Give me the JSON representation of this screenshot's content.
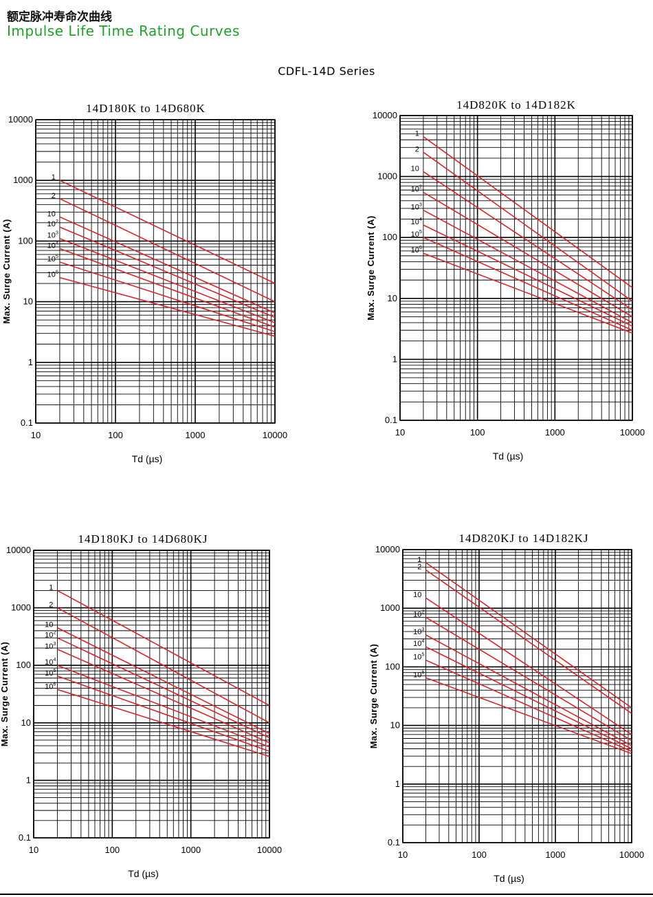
{
  "header": {
    "title_cn": "额定脉冲寿命次曲线",
    "title_en": "Impulse Life Time Rating Curves",
    "series": "CDFL-14D Series"
  },
  "colors": {
    "curve": "#d8232a",
    "grid": "#000000"
  },
  "chart_data": [
    {
      "type": "line",
      "title": "14D180K to 14D680K",
      "xlabel": "Td (µs)",
      "ylabel": "Max. Surge Current (A)",
      "x_scale": "log",
      "y_scale": "log",
      "xlim": [
        10,
        10000
      ],
      "ylim": [
        0.1,
        10000
      ],
      "x_ticks": [
        "10",
        "100",
        "1000",
        "10000"
      ],
      "y_ticks": [
        "0.1",
        "1",
        "10",
        "100",
        "1000",
        "10000"
      ],
      "grid": true,
      "series": [
        {
          "name": "1",
          "base": "1",
          "exp": "",
          "x": [
            20,
            10000
          ],
          "y": [
            1000,
            20
          ]
        },
        {
          "name": "2",
          "base": "2",
          "exp": "",
          "x": [
            20,
            10000
          ],
          "y": [
            500,
            10
          ]
        },
        {
          "name": "10",
          "base": "10",
          "exp": "",
          "x": [
            20,
            10000
          ],
          "y": [
            250,
            6.5
          ]
        },
        {
          "name": "10²",
          "base": "10",
          "exp": "2",
          "x": [
            20,
            10000
          ],
          "y": [
            170,
            5.5
          ]
        },
        {
          "name": "10³",
          "base": "10",
          "exp": "3",
          "x": [
            20,
            10000
          ],
          "y": [
            110,
            4.5
          ]
        },
        {
          "name": "10⁴",
          "base": "10",
          "exp": "4",
          "x": [
            20,
            10000
          ],
          "y": [
            75,
            3.8
          ]
        },
        {
          "name": "10⁵",
          "base": "10",
          "exp": "5",
          "x": [
            20,
            10000
          ],
          "y": [
            45,
            3.2
          ]
        },
        {
          "name": "10⁶",
          "base": "10",
          "exp": "6",
          "x": [
            20,
            10000
          ],
          "y": [
            25,
            2.7
          ]
        }
      ]
    },
    {
      "type": "line",
      "title": "14D820K to 14D182K",
      "xlabel": "Td (µs)",
      "ylabel": "Max. Surge Current (A)",
      "x_scale": "log",
      "y_scale": "log",
      "xlim": [
        10,
        10000
      ],
      "ylim": [
        0.1,
        10000
      ],
      "x_ticks": [
        "10",
        "100",
        "1000",
        "10000"
      ],
      "y_ticks": [
        "0.1",
        "1",
        "10",
        "100",
        "1000",
        "10000"
      ],
      "grid": true,
      "series": [
        {
          "name": "1",
          "base": "1",
          "exp": "",
          "x": [
            20,
            10000
          ],
          "y": [
            4500,
            15
          ]
        },
        {
          "name": "2",
          "base": "2",
          "exp": "",
          "x": [
            20,
            10000
          ],
          "y": [
            2500,
            9
          ]
        },
        {
          "name": "10",
          "base": "10",
          "exp": "",
          "x": [
            20,
            10000
          ],
          "y": [
            1200,
            6.5
          ]
        },
        {
          "name": "10²",
          "base": "10",
          "exp": "2",
          "x": [
            20,
            10000
          ],
          "y": [
            550,
            5
          ]
        },
        {
          "name": "10³",
          "base": "10",
          "exp": "3",
          "x": [
            20,
            10000
          ],
          "y": [
            280,
            4
          ]
        },
        {
          "name": "10⁴",
          "base": "10",
          "exp": "4",
          "x": [
            20,
            10000
          ],
          "y": [
            160,
            3.5
          ]
        },
        {
          "name": "10⁵",
          "base": "10",
          "exp": "5",
          "x": [
            20,
            10000
          ],
          "y": [
            100,
            3
          ]
        },
        {
          "name": "10⁶",
          "base": "10",
          "exp": "6",
          "x": [
            20,
            10000
          ],
          "y": [
            55,
            2.7
          ]
        }
      ]
    },
    {
      "type": "line",
      "title": "14D180KJ to 14D680KJ",
      "xlabel": "Td (µs)",
      "ylabel": "Max. Surge Current (A)",
      "x_scale": "log",
      "y_scale": "log",
      "xlim": [
        10,
        10000
      ],
      "ylim": [
        0.1,
        10000
      ],
      "x_ticks": [
        "10",
        "100",
        "1000",
        "10000"
      ],
      "y_ticks": [
        "0.1",
        "1",
        "10",
        "100",
        "1000",
        "10000"
      ],
      "grid": true,
      "series": [
        {
          "name": "1",
          "base": "1",
          "exp": "",
          "x": [
            20,
            10000
          ],
          "y": [
            2000,
            20
          ]
        },
        {
          "name": "2",
          "base": "2",
          "exp": "",
          "x": [
            20,
            10000
          ],
          "y": [
            1000,
            10
          ]
        },
        {
          "name": "10",
          "base": "10",
          "exp": "",
          "x": [
            20,
            10000
          ],
          "y": [
            450,
            6.5
          ]
        },
        {
          "name": "10²",
          "base": "10",
          "exp": "2",
          "x": [
            20,
            10000
          ],
          "y": [
            300,
            5.5
          ]
        },
        {
          "name": "10³",
          "base": "10",
          "exp": "3",
          "x": [
            20,
            10000
          ],
          "y": [
            190,
            4.5
          ]
        },
        {
          "name": "10⁴",
          "base": "10",
          "exp": "4",
          "x": [
            20,
            10000
          ],
          "y": [
            100,
            3.8
          ]
        },
        {
          "name": "10⁵",
          "base": "10",
          "exp": "5",
          "x": [
            20,
            10000
          ],
          "y": [
            65,
            3.2
          ]
        },
        {
          "name": "10⁶",
          "base": "10",
          "exp": "6",
          "x": [
            20,
            10000
          ],
          "y": [
            38,
            2.6
          ]
        }
      ]
    },
    {
      "type": "line",
      "title": "14D820KJ to 14D182KJ",
      "xlabel": "Td (µs)",
      "ylabel": "Max. Surge Current (A)",
      "x_scale": "log",
      "y_scale": "log",
      "xlim": [
        10,
        10000
      ],
      "ylim": [
        0.1,
        10000
      ],
      "x_ticks": [
        "10",
        "100",
        "1000",
        "10000"
      ],
      "y_ticks": [
        "0.1",
        "1",
        "10",
        "100",
        "1000",
        "10000"
      ],
      "grid": true,
      "series": [
        {
          "name": "1",
          "base": "1",
          "exp": "",
          "x": [
            20,
            10000
          ],
          "y": [
            6000,
            20
          ]
        },
        {
          "name": "2",
          "base": "2",
          "exp": "",
          "x": [
            20,
            10000
          ],
          "y": [
            4500,
            16
          ]
        },
        {
          "name": "10",
          "base": "10",
          "exp": "",
          "x": [
            20,
            10000
          ],
          "y": [
            1500,
            7
          ]
        },
        {
          "name": "10²",
          "base": "10",
          "exp": "2",
          "x": [
            20,
            10000
          ],
          "y": [
            700,
            5.5
          ]
        },
        {
          "name": "10³",
          "base": "10",
          "exp": "3",
          "x": [
            20,
            10000
          ],
          "y": [
            350,
            4.5
          ]
        },
        {
          "name": "10⁴",
          "base": "10",
          "exp": "4",
          "x": [
            20,
            10000
          ],
          "y": [
            220,
            4
          ]
        },
        {
          "name": "10⁵",
          "base": "10",
          "exp": "5",
          "x": [
            20,
            10000
          ],
          "y": [
            130,
            3.6
          ]
        },
        {
          "name": "10⁶",
          "base": "10",
          "exp": "6",
          "x": [
            20,
            10000
          ],
          "y": [
            65,
            3.3
          ]
        }
      ]
    }
  ]
}
